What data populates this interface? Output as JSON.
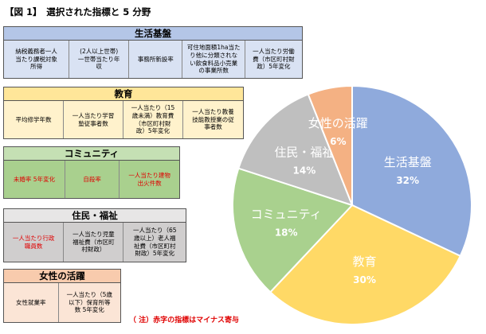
{
  "title": "【図 1】　選択された指標と 5 分野",
  "groups": {
    "life": {
      "name": "生活基盤",
      "items": [
        "納税義務者一人\n当たり課税対象\n所得",
        "(2人以上世帯)\n一世帯当たり年\n収",
        "事務所新設率",
        "可住地面積1ha当た\nり他に分類されな\nい飲食料品小売業\nの事業所数",
        "一人当たり労働\n費（市区町村財\n政）5年変化"
      ]
    },
    "edu": {
      "name": "教育",
      "items": [
        "平均修学年数",
        "一人当たり学習\n塾従事者数",
        "一人当たり（15\n歳未満）教育費\n（市区町村財\n政）5年変化",
        "一人当たり教養\n技能教授業の従\n事者数"
      ]
    },
    "comm": {
      "name": "コミュニティ",
      "items": [
        "未婚率 5年変化",
        "自殺率",
        "一人当たり建物\n出火件数"
      ]
    },
    "welf": {
      "name": "住民・福祉",
      "items": [
        "一人当たり行政\n職員数",
        "一人当たり児童\n福祉費（市区町\n村財政）",
        "一人当たり（65\n歳以上）老人福\n祉費（市区町村\n財政）5年変化"
      ]
    },
    "women": {
      "name": "女性の活躍",
      "items": [
        "女性就業率",
        "一人当たり（5歳\n以下）保育所等\n数 5年変化"
      ]
    }
  },
  "note": "（ 注）赤字の指標はマイナス寄与",
  "chart_data": {
    "type": "pie",
    "title": "",
    "start_angle_deg": 0,
    "direction": "clockwise",
    "slices": [
      {
        "label": "生活基盤",
        "value": 32,
        "value_label": "32%",
        "color": "#8faadc"
      },
      {
        "label": "教育",
        "value": 30,
        "value_label": "30%",
        "color": "#ffd966"
      },
      {
        "label": "コミュニティ",
        "value": 18,
        "value_label": "18%",
        "color": "#a9d18e"
      },
      {
        "label": "住民・福祉",
        "value": 14,
        "value_label": "14%",
        "color": "#bfbfbf"
      },
      {
        "label": "女性の活躍",
        "value": 6,
        "value_label": "6%",
        "color": "#f4b183"
      }
    ]
  }
}
